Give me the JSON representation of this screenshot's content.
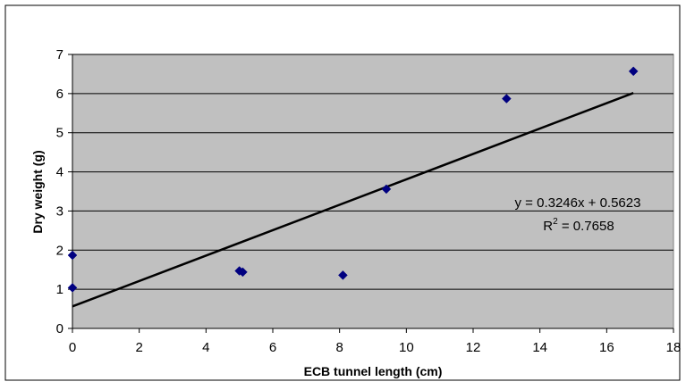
{
  "chart_data": {
    "type": "scatter",
    "title": "",
    "xlabel": "ECB tunnel length (cm)",
    "ylabel": "Dry weight (g)",
    "xlim": [
      0,
      18
    ],
    "ylim": [
      0,
      7
    ],
    "x_ticks": [
      "0",
      "2",
      "4",
      "6",
      "8",
      "10",
      "12",
      "14",
      "16",
      "18"
    ],
    "y_ticks": [
      "0",
      "1",
      "2",
      "3",
      "4",
      "5",
      "6",
      "7"
    ],
    "grid": "horizontal",
    "plot_background": "#c0c0c0",
    "marker_color": "#000080",
    "series": [
      {
        "x": [
          0,
          0,
          5.0,
          5.1,
          8.1,
          9.4,
          13.0,
          16.8
        ],
        "y": [
          1.87,
          1.04,
          1.47,
          1.44,
          1.36,
          3.56,
          5.87,
          6.57
        ]
      }
    ],
    "trendline": {
      "slope": 0.3246,
      "intercept": 0.5623,
      "x_range": [
        0,
        16.8
      ],
      "color": "#000000"
    },
    "annotations": {
      "equation": "y = 0.3246x + 0.5623",
      "r2_prefix": "R",
      "r2_sup": "2",
      "r2_value": " = 0.7658"
    }
  }
}
